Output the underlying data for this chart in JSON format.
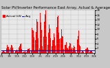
{
  "title": "Solar PV/Inverter Performance East Array, Actual & Average Power Output",
  "legend": [
    "Actual kW",
    "Avg"
  ],
  "bg_color": "#c8c8c8",
  "plot_bg": "#e8e8e8",
  "bar_color": "#ff0000",
  "avg_line_color": "#0000cc",
  "avg_value": 1.1,
  "ylim": [
    0,
    18
  ],
  "ytick_values": [
    2,
    4,
    6,
    8,
    10,
    12,
    14,
    16,
    18
  ],
  "num_bars": 400,
  "title_fontsize": 3.8,
  "legend_fontsize": 3.2,
  "xlabel_fontsize": 2.5,
  "ylabel_fontsize": 2.8,
  "grid_color": "#999999",
  "xaxis_bg": "#1a1a1a",
  "num_xticks": 13,
  "xtick_labels": [
    "1/1",
    "1/8",
    "1/15",
    "1/22",
    "1/29",
    "2/5",
    "2/12",
    "2/19",
    "2/26",
    "3/5",
    "3/12",
    "3/19",
    "3/26"
  ]
}
